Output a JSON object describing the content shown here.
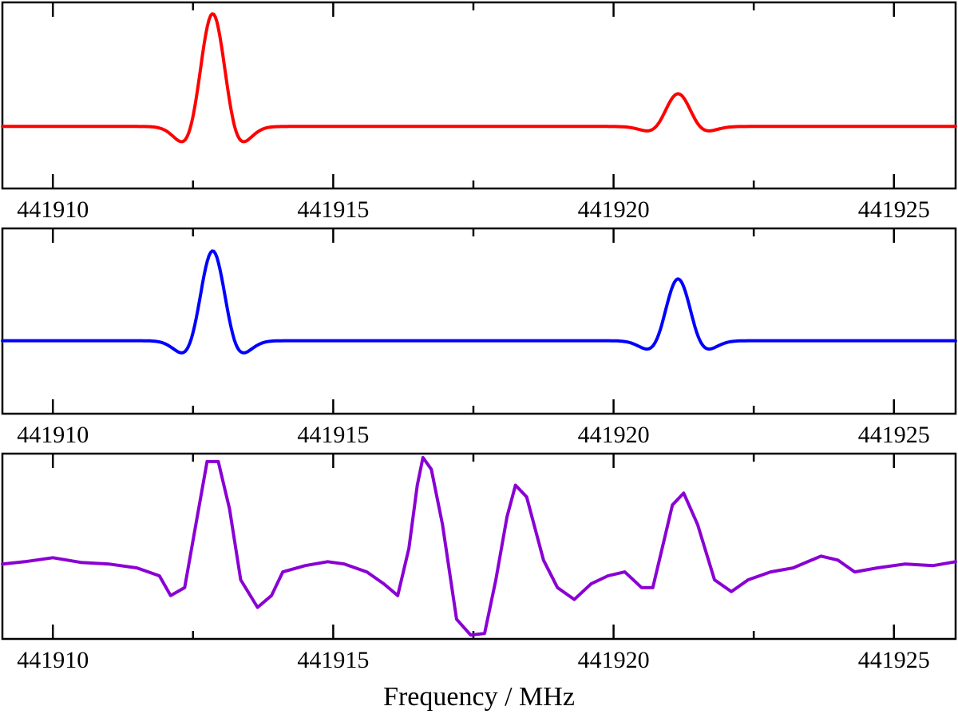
{
  "chart_data": [
    {
      "type": "line",
      "panel": "top",
      "xlim": [
        441909.1,
        441926.1
      ],
      "ylim": [
        -0.55,
        1.1
      ],
      "xticks": [
        441910,
        441915,
        441920,
        441925
      ],
      "xtick_labels": [
        "441910",
        "441915",
        "441920",
        "441925"
      ],
      "xlabel": "",
      "ylabel": "",
      "color": "#ff0000",
      "baseline": 0,
      "lines": [
        {
          "center": 441912.85,
          "amplitude": 1.0,
          "width": 0.48
        },
        {
          "center": 441921.15,
          "amplitude": 0.29,
          "width": 0.48
        }
      ]
    },
    {
      "type": "line",
      "panel": "middle",
      "xlim": [
        441909.1,
        441926.1
      ],
      "ylim": [
        -0.65,
        1.0
      ],
      "xticks": [
        441910,
        441915,
        441920,
        441925
      ],
      "xtick_labels": [
        "441910",
        "441915",
        "441920",
        "441925"
      ],
      "xlabel": "",
      "ylabel": "",
      "color": "#0000ff",
      "baseline": 0,
      "lines": [
        {
          "center": 441912.85,
          "amplitude": 0.8,
          "width": 0.48
        },
        {
          "center": 441921.15,
          "amplitude": 0.55,
          "width": 0.48
        }
      ]
    },
    {
      "type": "line",
      "panel": "bottom",
      "xlim": [
        441909.1,
        441926.1
      ],
      "ylim": [
        -0.95,
        1.4
      ],
      "xticks": [
        441910,
        441915,
        441920,
        441925
      ],
      "xtick_labels": [
        "441910",
        "441915",
        "441920",
        "441925"
      ],
      "xlabel": "Frequency / MHz",
      "ylabel": "",
      "color": "#8a00d4",
      "points": [
        [
          441909.1,
          0.0
        ],
        [
          441909.5,
          0.03
        ],
        [
          441910.0,
          0.08
        ],
        [
          441910.5,
          0.02
        ],
        [
          441911.0,
          0.0
        ],
        [
          441911.5,
          -0.05
        ],
        [
          441911.9,
          -0.15
        ],
        [
          441912.1,
          -0.4
        ],
        [
          441912.35,
          -0.3
        ],
        [
          441912.55,
          0.5
        ],
        [
          441912.75,
          1.3
        ],
        [
          441912.95,
          1.3
        ],
        [
          441913.15,
          0.7
        ],
        [
          441913.35,
          -0.2
        ],
        [
          441913.65,
          -0.55
        ],
        [
          441913.9,
          -0.4
        ],
        [
          441914.1,
          -0.1
        ],
        [
          441914.5,
          -0.02
        ],
        [
          441914.9,
          0.03
        ],
        [
          441915.2,
          0.0
        ],
        [
          441915.6,
          -0.1
        ],
        [
          441915.9,
          -0.25
        ],
        [
          441916.15,
          -0.4
        ],
        [
          441916.35,
          0.2
        ],
        [
          441916.5,
          1.0
        ],
        [
          441916.6,
          1.35
        ],
        [
          441916.75,
          1.2
        ],
        [
          441916.95,
          0.5
        ],
        [
          441917.2,
          -0.7
        ],
        [
          441917.45,
          -0.9
        ],
        [
          441917.7,
          -0.88
        ],
        [
          441917.9,
          -0.2
        ],
        [
          441918.1,
          0.6
        ],
        [
          441918.25,
          1.0
        ],
        [
          441918.45,
          0.85
        ],
        [
          441918.75,
          0.05
        ],
        [
          441919.0,
          -0.3
        ],
        [
          441919.3,
          -0.45
        ],
        [
          441919.6,
          -0.25
        ],
        [
          441919.9,
          -0.15
        ],
        [
          441920.2,
          -0.1
        ],
        [
          441920.5,
          -0.3
        ],
        [
          441920.7,
          -0.3
        ],
        [
          441920.9,
          0.3
        ],
        [
          441921.05,
          0.75
        ],
        [
          441921.25,
          0.9
        ],
        [
          441921.5,
          0.5
        ],
        [
          441921.8,
          -0.2
        ],
        [
          441922.1,
          -0.35
        ],
        [
          441922.4,
          -0.2
        ],
        [
          441922.8,
          -0.1
        ],
        [
          441923.2,
          -0.05
        ],
        [
          441923.7,
          0.1
        ],
        [
          441924.0,
          0.05
        ],
        [
          441924.3,
          -0.1
        ],
        [
          441924.7,
          -0.05
        ],
        [
          441925.2,
          0.0
        ],
        [
          441925.7,
          -0.02
        ],
        [
          441926.1,
          0.03
        ]
      ]
    }
  ]
}
